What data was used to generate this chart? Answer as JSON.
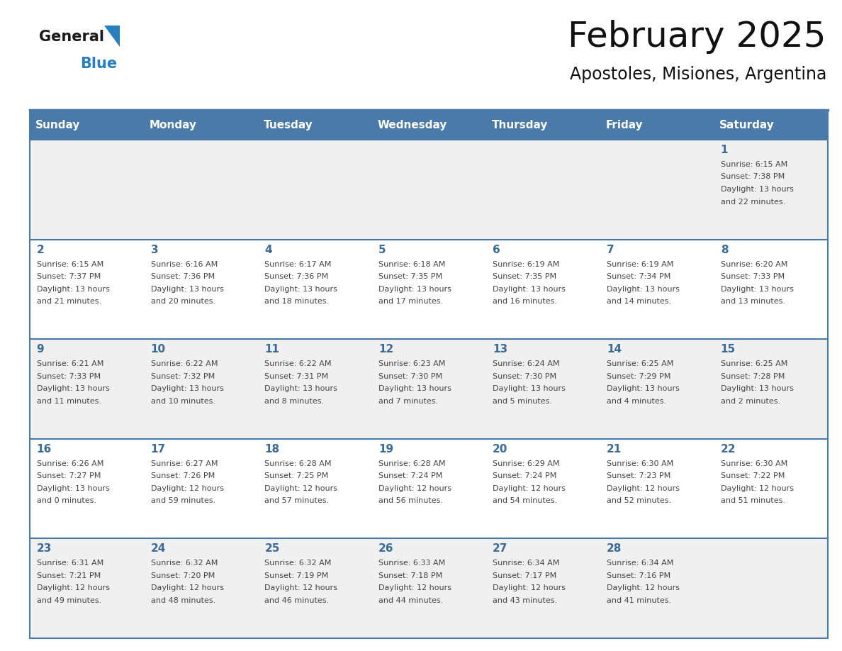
{
  "title": "February 2025",
  "subtitle": "Apostoles, Misiones, Argentina",
  "header_bg": "#4a7aaa",
  "header_text": "#ffffff",
  "cell_bg_week1": "#f0f0f0",
  "cell_bg_week2": "#ffffff",
  "cell_bg_week3": "#f0f0f0",
  "cell_bg_week4": "#ffffff",
  "cell_bg_week5": "#f0f0f0",
  "day_number_color": "#3a6a99",
  "info_text_color": "#444444",
  "separator_color": "#4a7aaa",
  "days_of_week": [
    "Sunday",
    "Monday",
    "Tuesday",
    "Wednesday",
    "Thursday",
    "Friday",
    "Saturday"
  ],
  "weeks": [
    [
      {
        "day": "",
        "info": ""
      },
      {
        "day": "",
        "info": ""
      },
      {
        "day": "",
        "info": ""
      },
      {
        "day": "",
        "info": ""
      },
      {
        "day": "",
        "info": ""
      },
      {
        "day": "",
        "info": ""
      },
      {
        "day": "1",
        "info": "Sunrise: 6:15 AM\nSunset: 7:38 PM\nDaylight: 13 hours\nand 22 minutes."
      }
    ],
    [
      {
        "day": "2",
        "info": "Sunrise: 6:15 AM\nSunset: 7:37 PM\nDaylight: 13 hours\nand 21 minutes."
      },
      {
        "day": "3",
        "info": "Sunrise: 6:16 AM\nSunset: 7:36 PM\nDaylight: 13 hours\nand 20 minutes."
      },
      {
        "day": "4",
        "info": "Sunrise: 6:17 AM\nSunset: 7:36 PM\nDaylight: 13 hours\nand 18 minutes."
      },
      {
        "day": "5",
        "info": "Sunrise: 6:18 AM\nSunset: 7:35 PM\nDaylight: 13 hours\nand 17 minutes."
      },
      {
        "day": "6",
        "info": "Sunrise: 6:19 AM\nSunset: 7:35 PM\nDaylight: 13 hours\nand 16 minutes."
      },
      {
        "day": "7",
        "info": "Sunrise: 6:19 AM\nSunset: 7:34 PM\nDaylight: 13 hours\nand 14 minutes."
      },
      {
        "day": "8",
        "info": "Sunrise: 6:20 AM\nSunset: 7:33 PM\nDaylight: 13 hours\nand 13 minutes."
      }
    ],
    [
      {
        "day": "9",
        "info": "Sunrise: 6:21 AM\nSunset: 7:33 PM\nDaylight: 13 hours\nand 11 minutes."
      },
      {
        "day": "10",
        "info": "Sunrise: 6:22 AM\nSunset: 7:32 PM\nDaylight: 13 hours\nand 10 minutes."
      },
      {
        "day": "11",
        "info": "Sunrise: 6:22 AM\nSunset: 7:31 PM\nDaylight: 13 hours\nand 8 minutes."
      },
      {
        "day": "12",
        "info": "Sunrise: 6:23 AM\nSunset: 7:30 PM\nDaylight: 13 hours\nand 7 minutes."
      },
      {
        "day": "13",
        "info": "Sunrise: 6:24 AM\nSunset: 7:30 PM\nDaylight: 13 hours\nand 5 minutes."
      },
      {
        "day": "14",
        "info": "Sunrise: 6:25 AM\nSunset: 7:29 PM\nDaylight: 13 hours\nand 4 minutes."
      },
      {
        "day": "15",
        "info": "Sunrise: 6:25 AM\nSunset: 7:28 PM\nDaylight: 13 hours\nand 2 minutes."
      }
    ],
    [
      {
        "day": "16",
        "info": "Sunrise: 6:26 AM\nSunset: 7:27 PM\nDaylight: 13 hours\nand 0 minutes."
      },
      {
        "day": "17",
        "info": "Sunrise: 6:27 AM\nSunset: 7:26 PM\nDaylight: 12 hours\nand 59 minutes."
      },
      {
        "day": "18",
        "info": "Sunrise: 6:28 AM\nSunset: 7:25 PM\nDaylight: 12 hours\nand 57 minutes."
      },
      {
        "day": "19",
        "info": "Sunrise: 6:28 AM\nSunset: 7:24 PM\nDaylight: 12 hours\nand 56 minutes."
      },
      {
        "day": "20",
        "info": "Sunrise: 6:29 AM\nSunset: 7:24 PM\nDaylight: 12 hours\nand 54 minutes."
      },
      {
        "day": "21",
        "info": "Sunrise: 6:30 AM\nSunset: 7:23 PM\nDaylight: 12 hours\nand 52 minutes."
      },
      {
        "day": "22",
        "info": "Sunrise: 6:30 AM\nSunset: 7:22 PM\nDaylight: 12 hours\nand 51 minutes."
      }
    ],
    [
      {
        "day": "23",
        "info": "Sunrise: 6:31 AM\nSunset: 7:21 PM\nDaylight: 12 hours\nand 49 minutes."
      },
      {
        "day": "24",
        "info": "Sunrise: 6:32 AM\nSunset: 7:20 PM\nDaylight: 12 hours\nand 48 minutes."
      },
      {
        "day": "25",
        "info": "Sunrise: 6:32 AM\nSunset: 7:19 PM\nDaylight: 12 hours\nand 46 minutes."
      },
      {
        "day": "26",
        "info": "Sunrise: 6:33 AM\nSunset: 7:18 PM\nDaylight: 12 hours\nand 44 minutes."
      },
      {
        "day": "27",
        "info": "Sunrise: 6:34 AM\nSunset: 7:17 PM\nDaylight: 12 hours\nand 43 minutes."
      },
      {
        "day": "28",
        "info": "Sunrise: 6:34 AM\nSunset: 7:16 PM\nDaylight: 12 hours\nand 41 minutes."
      },
      {
        "day": "",
        "info": ""
      }
    ]
  ],
  "logo_general_color": "#1a1a1a",
  "logo_blue_color": "#2980c0",
  "logo_triangle_color": "#2980c0",
  "title_fontsize": 36,
  "subtitle_fontsize": 17,
  "header_fontsize": 11,
  "day_num_fontsize": 11,
  "info_fontsize": 8
}
